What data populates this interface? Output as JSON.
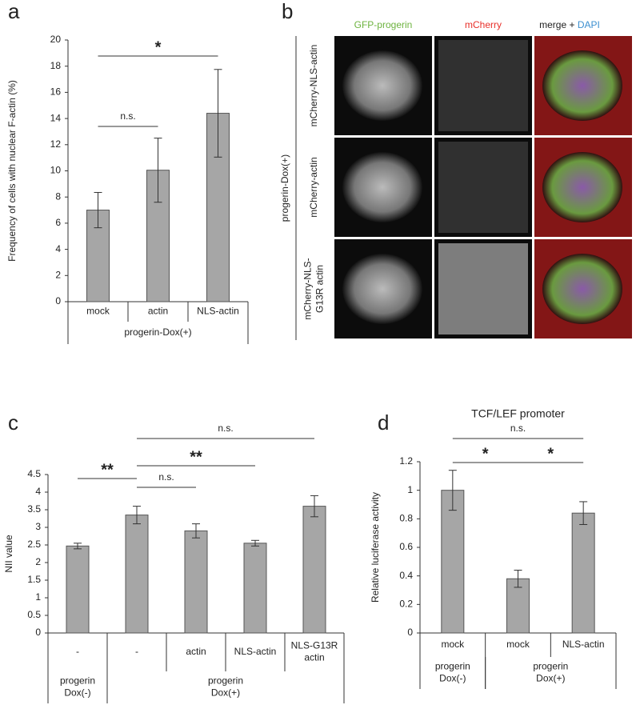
{
  "chart_data": [
    {
      "type": "bar",
      "panel": "a",
      "ylabel": "Frequency of cells with nuclear F-actin (%)",
      "categories": [
        "mock",
        "actin",
        "NLS-actin"
      ],
      "values": [
        7.0,
        10.05,
        14.4
      ],
      "errors": [
        1.35,
        2.45,
        3.35
      ],
      "color": "#a6a6a6",
      "ylim": [
        0,
        20
      ],
      "yticks": [
        0,
        2,
        4,
        6,
        8,
        10,
        12,
        14,
        16,
        18,
        20
      ],
      "groups": [
        {
          "label": "progerin-Dox(+)",
          "span": [
            0,
            2
          ]
        }
      ],
      "annotations": [
        {
          "label": "*",
          "from": 0,
          "to": 2
        },
        {
          "label": "n.s.",
          "from": 0,
          "to": 1
        }
      ]
    },
    {
      "type": "bar",
      "panel": "c",
      "ylabel": "NII value",
      "categories": [
        "-",
        "-",
        "actin",
        "NLS-actin",
        "NLS-G13R\nactin"
      ],
      "values": [
        2.47,
        3.35,
        2.9,
        2.55,
        3.6
      ],
      "errors": [
        0.08,
        0.25,
        0.2,
        0.08,
        0.3
      ],
      "color": "#a6a6a6",
      "ylim": [
        0,
        4.5
      ],
      "yticks": [
        0,
        0.5,
        1,
        1.5,
        2,
        2.5,
        3,
        3.5,
        4,
        4.5
      ],
      "groups": [
        {
          "label": "progerin\nDox(-)",
          "span": [
            0,
            0
          ]
        },
        {
          "label": "progerin\nDox(+)",
          "span": [
            1,
            4
          ]
        }
      ],
      "annotations": [
        {
          "label": "**",
          "from": 0,
          "to": 1
        },
        {
          "label": "n.s.",
          "from": 1,
          "to": 2
        },
        {
          "label": "**",
          "from": 1,
          "to": 3
        },
        {
          "label": "n.s.",
          "from": 1,
          "to": 4
        }
      ]
    },
    {
      "type": "bar",
      "panel": "d",
      "title": "TCF/LEF promoter",
      "ylabel": "Relative luciferase activity",
      "categories": [
        "mock",
        "mock",
        "NLS-actin"
      ],
      "values": [
        1.0,
        0.38,
        0.84
      ],
      "errors": [
        0.14,
        0.06,
        0.08
      ],
      "color": "#a6a6a6",
      "ylim": [
        0,
        1.2
      ],
      "yticks": [
        0,
        0.2,
        0.4,
        0.6,
        0.8,
        1,
        1.2
      ],
      "groups": [
        {
          "label": "progerin\nDox(-)",
          "span": [
            0,
            0
          ]
        },
        {
          "label": "progerin\nDox(+)",
          "span": [
            1,
            2
          ]
        }
      ],
      "annotations": [
        {
          "label": "*",
          "from": 0,
          "to": 1
        },
        {
          "label": "*",
          "from": 1,
          "to": 2
        },
        {
          "label": "n.s.",
          "from": 0,
          "to": 2
        }
      ]
    }
  ],
  "image_panel": {
    "panel": "b",
    "columns": [
      "GFP-progerin",
      "mCherry",
      "merge + ",
      "DAPI"
    ],
    "rows": [
      "mCherry-NLS-actin",
      "mCherry-actin",
      "mCherry-NLS-\nG13R actin"
    ],
    "group": "progerin-Dox(+)"
  }
}
